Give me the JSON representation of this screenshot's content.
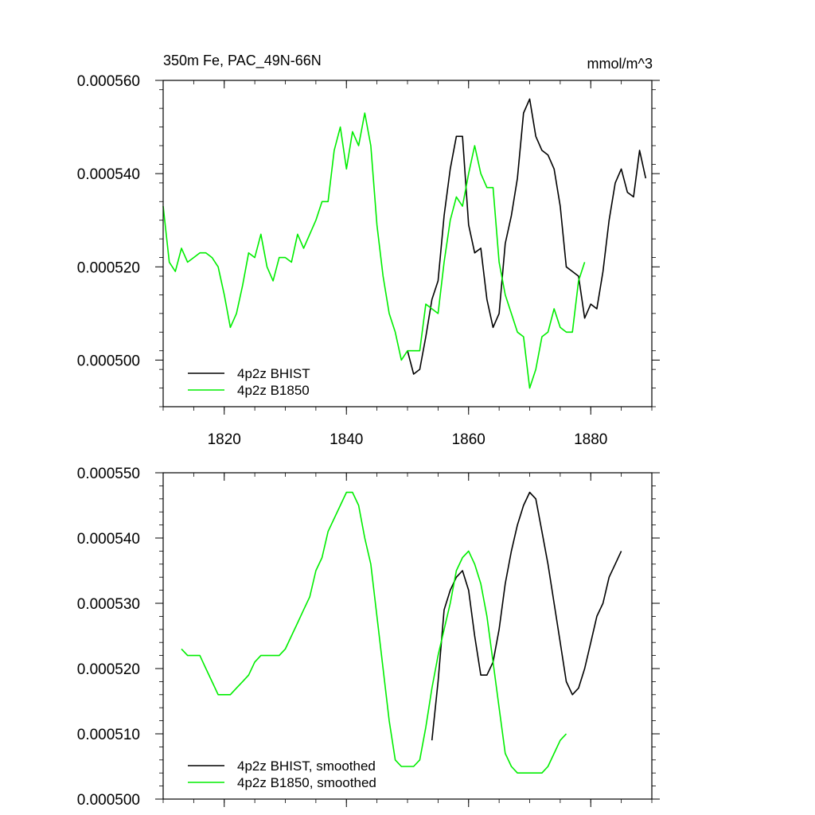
{
  "chart_data": [
    {
      "type": "line",
      "title_left": "350m Fe, PAC_49N-66N",
      "title_right": "mmol/m^3",
      "xlabel": "",
      "ylabel": "",
      "xlim": [
        1810,
        1890
      ],
      "ylim": [
        0.00049,
        0.00056
      ],
      "xticks": [
        1820,
        1840,
        1860,
        1880
      ],
      "xtick_labels": [
        "1820",
        "1840",
        "1860",
        "1880"
      ],
      "yticks": [
        0.0005,
        0.00052,
        0.00054,
        0.00056
      ],
      "ytick_labels": [
        "0.000500",
        "0.000520",
        "0.000540",
        "0.000560"
      ],
      "grid": false,
      "legend_position": "bottom-left",
      "series": [
        {
          "name": "4p2z BHIST",
          "color": "#000000",
          "x": [
            1850,
            1851,
            1852,
            1853,
            1854,
            1855,
            1856,
            1857,
            1858,
            1859,
            1860,
            1861,
            1862,
            1863,
            1864,
            1865,
            1866,
            1867,
            1868,
            1869,
            1870,
            1871,
            1872,
            1873,
            1874,
            1875,
            1876,
            1877,
            1878,
            1879,
            1880,
            1881,
            1882,
            1883,
            1884,
            1885,
            1886,
            1887,
            1888,
            1889
          ],
          "y": [
            0.000502,
            0.000497,
            0.000498,
            0.000505,
            0.000513,
            0.000517,
            0.000531,
            0.000541,
            0.000548,
            0.000548,
            0.000529,
            0.000523,
            0.000524,
            0.000513,
            0.000507,
            0.00051,
            0.000525,
            0.000531,
            0.000539,
            0.000553,
            0.000556,
            0.000548,
            0.000545,
            0.000544,
            0.000541,
            0.000533,
            0.00052,
            0.000519,
            0.000518,
            0.000509,
            0.000512,
            0.000511,
            0.000519,
            0.00053,
            0.000538,
            0.000541,
            0.000536,
            0.000535,
            0.000545,
            0.000539
          ]
        },
        {
          "name": "4p2z B1850",
          "color": "#00ee00",
          "x": [
            1810,
            1811,
            1812,
            1813,
            1814,
            1815,
            1816,
            1817,
            1818,
            1819,
            1820,
            1821,
            1822,
            1823,
            1824,
            1825,
            1826,
            1827,
            1828,
            1829,
            1830,
            1831,
            1832,
            1833,
            1834,
            1835,
            1836,
            1837,
            1838,
            1839,
            1840,
            1841,
            1842,
            1843,
            1844,
            1845,
            1846,
            1847,
            1848,
            1849,
            1850,
            1851,
            1852,
            1853,
            1854,
            1855,
            1856,
            1857,
            1858,
            1859,
            1860,
            1861,
            1862,
            1863,
            1864,
            1865,
            1866,
            1867,
            1868,
            1869,
            1870,
            1871,
            1872,
            1873,
            1874,
            1875,
            1876,
            1877,
            1878,
            1879
          ],
          "y": [
            0.000533,
            0.000521,
            0.000519,
            0.000524,
            0.000521,
            0.000522,
            0.000523,
            0.000523,
            0.000522,
            0.00052,
            0.000514,
            0.000507,
            0.00051,
            0.000516,
            0.000523,
            0.000522,
            0.000527,
            0.00052,
            0.000517,
            0.000522,
            0.000522,
            0.000521,
            0.000527,
            0.000524,
            0.000527,
            0.00053,
            0.000534,
            0.000534,
            0.000545,
            0.00055,
            0.000541,
            0.000549,
            0.000546,
            0.000553,
            0.000546,
            0.000529,
            0.000518,
            0.00051,
            0.000506,
            0.0005,
            0.000502,
            0.000502,
            0.000502,
            0.000512,
            0.000511,
            0.00051,
            0.000521,
            0.00053,
            0.000535,
            0.000533,
            0.00054,
            0.000546,
            0.00054,
            0.000537,
            0.000537,
            0.000521,
            0.000514,
            0.00051,
            0.000506,
            0.000505,
            0.000494,
            0.000498,
            0.000505,
            0.000506,
            0.000511,
            0.000507,
            0.000506,
            0.000506,
            0.000517,
            0.000521
          ]
        }
      ]
    },
    {
      "type": "line",
      "xlabel": "",
      "ylabel": "",
      "xlim": [
        1810,
        1890
      ],
      "ylim": [
        0.0005,
        0.00055
      ],
      "xticks": [
        1820,
        1840,
        1860,
        1880
      ],
      "yticks": [
        0.0005,
        0.00051,
        0.00052,
        0.00053,
        0.00054,
        0.00055
      ],
      "ytick_labels": [
        "0.000500",
        "0.000510",
        "0.000520",
        "0.000530",
        "0.000540",
        "0.000550"
      ],
      "grid": false,
      "legend_position": "bottom-left",
      "series": [
        {
          "name": "4p2z BHIST, smoothed",
          "color": "#000000",
          "x": [
            1854,
            1855,
            1856,
            1857,
            1858,
            1859,
            1860,
            1861,
            1862,
            1863,
            1864,
            1865,
            1866,
            1867,
            1868,
            1869,
            1870,
            1871,
            1872,
            1873,
            1874,
            1875,
            1876,
            1877,
            1878,
            1879,
            1880,
            1881,
            1882,
            1883,
            1884,
            1885
          ],
          "y": [
            0.000509,
            0.000518,
            0.000529,
            0.000532,
            0.000534,
            0.000535,
            0.000532,
            0.000525,
            0.000519,
            0.000519,
            0.000521,
            0.000526,
            0.000533,
            0.000538,
            0.000542,
            0.000545,
            0.000547,
            0.000546,
            0.000541,
            0.000536,
            0.00053,
            0.000524,
            0.000518,
            0.000516,
            0.000517,
            0.00052,
            0.000524,
            0.000528,
            0.00053,
            0.000534,
            0.000536,
            0.000538
          ]
        },
        {
          "name": "4p2z B1850, smoothed",
          "color": "#00ee00",
          "x": [
            1813,
            1814,
            1815,
            1816,
            1817,
            1818,
            1819,
            1820,
            1821,
            1822,
            1823,
            1824,
            1825,
            1826,
            1827,
            1828,
            1829,
            1830,
            1831,
            1832,
            1833,
            1834,
            1835,
            1836,
            1837,
            1838,
            1839,
            1840,
            1841,
            1842,
            1843,
            1844,
            1845,
            1846,
            1847,
            1848,
            1849,
            1850,
            1851,
            1852,
            1853,
            1854,
            1855,
            1856,
            1857,
            1858,
            1859,
            1860,
            1861,
            1862,
            1863,
            1864,
            1865,
            1866,
            1867,
            1868,
            1869,
            1870,
            1871,
            1872,
            1873,
            1874,
            1875,
            1876
          ],
          "y": [
            0.000523,
            0.000522,
            0.000522,
            0.000522,
            0.00052,
            0.000518,
            0.000516,
            0.000516,
            0.000516,
            0.000517,
            0.000518,
            0.000519,
            0.000521,
            0.000522,
            0.000522,
            0.000522,
            0.000522,
            0.000523,
            0.000525,
            0.000527,
            0.000529,
            0.000531,
            0.000535,
            0.000537,
            0.000541,
            0.000543,
            0.000545,
            0.000547,
            0.000547,
            0.000545,
            0.00054,
            0.000536,
            0.000528,
            0.00052,
            0.000512,
            0.000506,
            0.000505,
            0.000505,
            0.000505,
            0.000506,
            0.000511,
            0.000517,
            0.000522,
            0.000526,
            0.00053,
            0.000535,
            0.000537,
            0.000538,
            0.000536,
            0.000533,
            0.000528,
            0.000521,
            0.000514,
            0.000507,
            0.000505,
            0.000504,
            0.000504,
            0.000504,
            0.000504,
            0.000504,
            0.000505,
            0.000507,
            0.000509,
            0.00051
          ]
        }
      ]
    }
  ]
}
